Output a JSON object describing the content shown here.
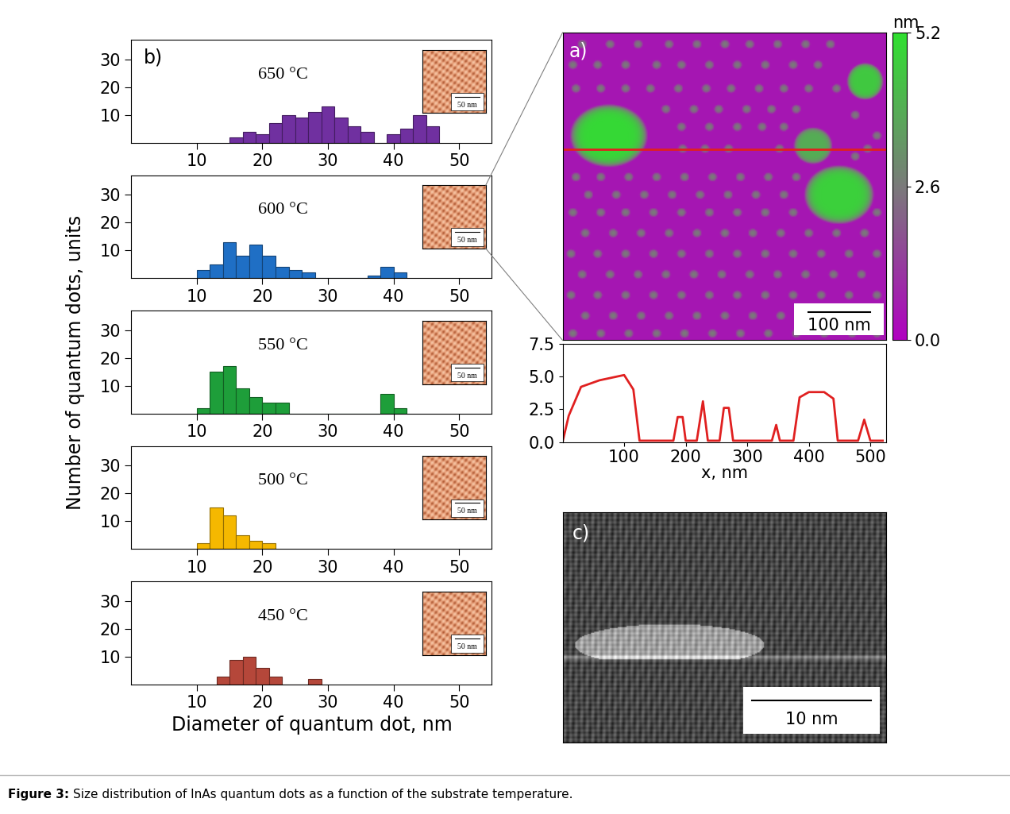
{
  "histogram_panel": {
    "panel": "b)",
    "ylabel": "Number of quantum dots, units",
    "xlabel": "Diameter of quantum dot, nm"
  },
  "chart_data": [
    {
      "type": "histogram",
      "label": "650 °C",
      "color": "#7030a0",
      "bins": [
        15,
        17,
        19,
        21,
        23,
        25,
        27,
        29,
        31,
        33,
        35,
        37,
        39,
        41,
        43,
        45,
        47
      ],
      "counts": [
        2,
        4,
        3,
        7,
        10,
        9,
        11,
        13,
        9,
        6,
        4,
        0,
        3,
        5,
        10,
        6
      ],
      "xlim": [
        0,
        55
      ],
      "ylim": [
        0,
        37
      ],
      "xticks": [
        10,
        20,
        30,
        40,
        50
      ],
      "yticks": [
        10,
        20,
        30
      ],
      "inset_scale_bar": "50 nm"
    },
    {
      "type": "histogram",
      "label": "600 °C",
      "color": "#1f6fc5",
      "bins": [
        10,
        12,
        14,
        16,
        18,
        20,
        22,
        24,
        26,
        28,
        30,
        32,
        34,
        36,
        38,
        40,
        42
      ],
      "counts": [
        3,
        5,
        13,
        8,
        12,
        8,
        4,
        3,
        2,
        0,
        0,
        0,
        0,
        1,
        4,
        2
      ],
      "xlim": [
        0,
        55
      ],
      "ylim": [
        0,
        37
      ],
      "xticks": [
        10,
        20,
        30,
        40,
        50
      ],
      "yticks": [
        10,
        20,
        30
      ],
      "inset_scale_bar": "50 nm"
    },
    {
      "type": "histogram",
      "label": "550 °C",
      "color": "#1e9e3a",
      "bins": [
        10,
        12,
        14,
        16,
        18,
        20,
        22,
        24,
        26,
        28,
        30,
        32,
        34,
        36,
        38,
        40,
        42
      ],
      "counts": [
        2,
        15,
        17,
        9,
        6,
        4,
        4,
        0,
        0,
        0,
        0,
        0,
        0,
        0,
        7,
        2
      ],
      "xlim": [
        0,
        55
      ],
      "ylim": [
        0,
        37
      ],
      "xticks": [
        10,
        20,
        30,
        40,
        50
      ],
      "yticks": [
        10,
        20,
        30
      ],
      "inset_scale_bar": "50 nm"
    },
    {
      "type": "histogram",
      "label": "500 °C",
      "color": "#f5b800",
      "bins": [
        10,
        12,
        14,
        16,
        18,
        20,
        22
      ],
      "counts": [
        2,
        15,
        12,
        5,
        3,
        2
      ],
      "xlim": [
        0,
        55
      ],
      "ylim": [
        0,
        37
      ],
      "xticks": [
        10,
        20,
        30,
        40,
        50
      ],
      "yticks": [
        10,
        20,
        30
      ],
      "inset_scale_bar": "50 nm"
    },
    {
      "type": "histogram",
      "label": "450 °C",
      "color": "#b5473a",
      "bins": [
        13,
        15,
        17,
        19,
        21,
        23,
        25,
        27,
        29
      ],
      "counts": [
        3,
        9,
        10,
        6,
        3,
        0,
        0,
        2
      ],
      "xlim": [
        0,
        55
      ],
      "ylim": [
        0,
        37
      ],
      "xticks": [
        10,
        20,
        30,
        40,
        50
      ],
      "yticks": [
        10,
        20,
        30
      ],
      "inset_scale_bar": "50 nm"
    },
    {
      "type": "line",
      "color": "#e02020",
      "xlabel": "x, nm",
      "x": [
        0,
        10,
        30,
        60,
        100,
        115,
        125,
        180,
        187,
        195,
        200,
        218,
        228,
        236,
        255,
        262,
        270,
        277,
        340,
        347,
        353,
        375,
        385,
        400,
        425,
        440,
        447,
        480,
        490,
        500,
        520
      ],
      "values": [
        0,
        2.0,
        4.2,
        4.7,
        5.1,
        4.0,
        0.1,
        0.1,
        1.9,
        1.9,
        0.1,
        0.1,
        3.1,
        0.1,
        0.1,
        2.6,
        2.6,
        0.1,
        0.1,
        1.3,
        0.1,
        0.1,
        3.4,
        3.8,
        3.8,
        3.3,
        0.1,
        0.1,
        1.7,
        0.1,
        0.1
      ],
      "xlim": [
        0,
        525
      ],
      "ylim": [
        0,
        7.5
      ],
      "xticks": [
        100,
        200,
        300,
        400,
        500
      ],
      "yticks": [
        {
          "value": 0,
          "label": "0.0"
        },
        {
          "value": 2.5,
          "label": "2.5"
        },
        {
          "value": 5,
          "label": "5.0"
        },
        {
          "value": 7.5,
          "label": "7.5"
        }
      ]
    }
  ],
  "afm": {
    "panel": "a)",
    "extent": [
      0,
      520
    ],
    "background": 0.5,
    "profile_y": 197,
    "islands": [
      {
        "x": 73,
        "y": 175,
        "width": 128,
        "height": 109,
        "z": 5.0
      },
      {
        "x": 486,
        "y": 83,
        "width": 60,
        "height": 64,
        "z": 4.6
      },
      {
        "x": 402,
        "y": 192,
        "width": 64,
        "height": 64,
        "z": 3.9
      },
      {
        "x": 444,
        "y": 275,
        "width": 115,
        "height": 102,
        "z": 4.8
      }
    ],
    "dot_diameter": 16,
    "dot_z": 2.6,
    "dots": [
      [
        30,
        20
      ],
      [
        75,
        20
      ],
      [
        120,
        20
      ],
      [
        170,
        20
      ],
      [
        215,
        20
      ],
      [
        260,
        20
      ],
      [
        300,
        20
      ],
      [
        345,
        20
      ],
      [
        390,
        20
      ],
      [
        430,
        20
      ],
      [
        15,
        55
      ],
      [
        55,
        55
      ],
      [
        100,
        55
      ],
      [
        150,
        55
      ],
      [
        190,
        55
      ],
      [
        235,
        55
      ],
      [
        280,
        55
      ],
      [
        325,
        55
      ],
      [
        370,
        55
      ],
      [
        410,
        55
      ],
      [
        20,
        95
      ],
      [
        60,
        95
      ],
      [
        100,
        95
      ],
      [
        140,
        95
      ],
      [
        185,
        95
      ],
      [
        230,
        95
      ],
      [
        270,
        95
      ],
      [
        315,
        95
      ],
      [
        355,
        95
      ],
      [
        395,
        95
      ],
      [
        440,
        95
      ],
      [
        165,
        130
      ],
      [
        210,
        130
      ],
      [
        250,
        130
      ],
      [
        295,
        130
      ],
      [
        335,
        130
      ],
      [
        375,
        130
      ],
      [
        190,
        160
      ],
      [
        235,
        160
      ],
      [
        280,
        160
      ],
      [
        320,
        160
      ],
      [
        355,
        160
      ],
      [
        470,
        140
      ],
      [
        505,
        175
      ],
      [
        470,
        210
      ],
      [
        192,
        197
      ],
      [
        228,
        197
      ],
      [
        266,
        197
      ],
      [
        348,
        197
      ],
      [
        490,
        197
      ],
      [
        20,
        245
      ],
      [
        60,
        245
      ],
      [
        105,
        245
      ],
      [
        150,
        245
      ],
      [
        195,
        245
      ],
      [
        240,
        245
      ],
      [
        285,
        245
      ],
      [
        330,
        245
      ],
      [
        375,
        245
      ],
      [
        40,
        275
      ],
      [
        85,
        275
      ],
      [
        130,
        275
      ],
      [
        175,
        275
      ],
      [
        220,
        275
      ],
      [
        265,
        275
      ],
      [
        310,
        275
      ],
      [
        355,
        275
      ],
      [
        15,
        305
      ],
      [
        60,
        305
      ],
      [
        100,
        305
      ],
      [
        145,
        305
      ],
      [
        190,
        305
      ],
      [
        235,
        305
      ],
      [
        280,
        305
      ],
      [
        325,
        305
      ],
      [
        370,
        305
      ],
      [
        505,
        305
      ],
      [
        35,
        340
      ],
      [
        80,
        340
      ],
      [
        125,
        340
      ],
      [
        170,
        340
      ],
      [
        215,
        340
      ],
      [
        260,
        340
      ],
      [
        305,
        340
      ],
      [
        350,
        340
      ],
      [
        395,
        340
      ],
      [
        440,
        340
      ],
      [
        485,
        340
      ],
      [
        12,
        375
      ],
      [
        55,
        375
      ],
      [
        100,
        375
      ],
      [
        145,
        375
      ],
      [
        190,
        375
      ],
      [
        235,
        375
      ],
      [
        280,
        375
      ],
      [
        325,
        375
      ],
      [
        370,
        375
      ],
      [
        415,
        375
      ],
      [
        460,
        375
      ],
      [
        505,
        375
      ],
      [
        30,
        410
      ],
      [
        75,
        410
      ],
      [
        120,
        410
      ],
      [
        165,
        410
      ],
      [
        210,
        410
      ],
      [
        255,
        410
      ],
      [
        300,
        410
      ],
      [
        345,
        410
      ],
      [
        390,
        410
      ],
      [
        435,
        410
      ],
      [
        480,
        410
      ],
      [
        12,
        445
      ],
      [
        55,
        445
      ],
      [
        100,
        445
      ],
      [
        145,
        445
      ],
      [
        190,
        445
      ],
      [
        235,
        445
      ],
      [
        280,
        445
      ],
      [
        325,
        445
      ],
      [
        370,
        445
      ],
      [
        415,
        445
      ],
      [
        460,
        445
      ],
      [
        505,
        445
      ],
      [
        35,
        480
      ],
      [
        80,
        480
      ],
      [
        125,
        480
      ],
      [
        170,
        480
      ],
      [
        215,
        480
      ],
      [
        260,
        480
      ],
      [
        305,
        480
      ],
      [
        350,
        480
      ],
      [
        395,
        480
      ],
      [
        440,
        480
      ],
      [
        485,
        480
      ],
      [
        15,
        510
      ],
      [
        60,
        510
      ],
      [
        105,
        510
      ],
      [
        150,
        510
      ],
      [
        195,
        510
      ],
      [
        240,
        510
      ],
      [
        285,
        510
      ],
      [
        330,
        510
      ],
      [
        375,
        510
      ],
      [
        420,
        510
      ],
      [
        465,
        510
      ],
      [
        505,
        510
      ]
    ],
    "colorbar": {
      "label": "nm",
      "range": [
        0,
        5.2
      ],
      "ticks": [
        {
          "value": 0,
          "label": "0.0"
        },
        {
          "value": 2.6,
          "label": "2.6"
        },
        {
          "value": 5.2,
          "label": "5.2"
        }
      ]
    },
    "scale_bar": {
      "length": 100,
      "label": "100 nm"
    }
  },
  "tem": {
    "panel": "c)",
    "scale_bar": {
      "length": 10,
      "label": "10 nm"
    }
  },
  "caption": {
    "label": "Figure 3:",
    "text": "Size distribution of InAs quantum dots as a function of the substrate temperature."
  }
}
